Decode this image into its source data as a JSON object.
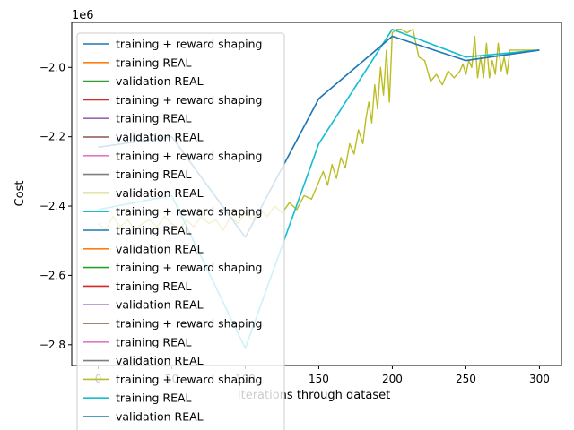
{
  "chart_data": {
    "type": "line",
    "title": "",
    "xlabel": "Iterations through dataset",
    "ylabel": "Cost",
    "offset_label": "1e6",
    "xlim": [
      -18,
      315
    ],
    "ylim": [
      -2.86,
      -1.87
    ],
    "xticks": [
      0,
      50,
      100,
      150,
      200,
      250,
      300
    ],
    "xtick_labels": [
      "0",
      "50",
      "100",
      "150",
      "200",
      "250",
      "300"
    ],
    "yticks": [
      -2.8,
      -2.6,
      -2.4,
      -2.2,
      -2.0
    ],
    "ytick_labels": [
      "−2.8",
      "−2.6",
      "−2.4",
      "−2.2",
      "−2.0"
    ],
    "legend": {
      "location": "upper-left",
      "entries": [
        {
          "label": "training + reward shaping",
          "color": "#1f77b4"
        },
        {
          "label": "training REAL",
          "color": "#ff7f0e"
        },
        {
          "label": "validation REAL",
          "color": "#2ca02c"
        },
        {
          "label": "training + reward shaping",
          "color": "#d62728"
        },
        {
          "label": "training REAL",
          "color": "#9467bd"
        },
        {
          "label": "validation REAL",
          "color": "#8c564b"
        },
        {
          "label": "training + reward shaping",
          "color": "#e377c2"
        },
        {
          "label": "training REAL",
          "color": "#7f7f7f"
        },
        {
          "label": "validation REAL",
          "color": "#bcbd22"
        },
        {
          "label": "training + reward shaping",
          "color": "#17becf"
        },
        {
          "label": "training REAL",
          "color": "#1f77b4"
        },
        {
          "label": "validation REAL",
          "color": "#ff7f0e"
        },
        {
          "label": "training + reward shaping",
          "color": "#2ca02c"
        },
        {
          "label": "training REAL",
          "color": "#d62728"
        },
        {
          "label": "validation REAL",
          "color": "#9467bd"
        },
        {
          "label": "training + reward shaping",
          "color": "#8c564b"
        },
        {
          "label": "training REAL",
          "color": "#e377c2"
        },
        {
          "label": "validation REAL",
          "color": "#7f7f7f"
        },
        {
          "label": "training + reward shaping",
          "color": "#bcbd22"
        },
        {
          "label": "training REAL",
          "color": "#17becf"
        },
        {
          "label": "validation REAL",
          "color": "#1f77b4"
        }
      ]
    },
    "series": [
      {
        "color": "#bcbd22",
        "kind": "noisy",
        "x": [
          0,
          5,
          10,
          15,
          20,
          25,
          30,
          35,
          40,
          45,
          50,
          55,
          60,
          65,
          70,
          75,
          80,
          85,
          90,
          95,
          100,
          105,
          110,
          115,
          120,
          125,
          130,
          135,
          140,
          145,
          150,
          153,
          156,
          159,
          162,
          165,
          168,
          171,
          174,
          177,
          180,
          182,
          184,
          186,
          188,
          190,
          192,
          194,
          196,
          198,
          200,
          203,
          206,
          210,
          214,
          218,
          222,
          226,
          230,
          234,
          238,
          242,
          246,
          248,
          250,
          252,
          254,
          256,
          258,
          260,
          262,
          264,
          266,
          268,
          270,
          272,
          274,
          276,
          278,
          280,
          285,
          290,
          295,
          300
        ],
        "y": [
          -2.45,
          -2.47,
          -2.43,
          -2.46,
          -2.44,
          -2.47,
          -2.45,
          -2.44,
          -2.46,
          -2.43,
          -2.45,
          -2.47,
          -2.44,
          -2.46,
          -2.43,
          -2.45,
          -2.44,
          -2.47,
          -2.43,
          -2.45,
          -2.42,
          -2.44,
          -2.41,
          -2.43,
          -2.4,
          -2.42,
          -2.39,
          -2.41,
          -2.37,
          -2.38,
          -2.33,
          -2.3,
          -2.34,
          -2.28,
          -2.32,
          -2.26,
          -2.29,
          -2.22,
          -2.25,
          -2.18,
          -2.22,
          -2.15,
          -2.1,
          -2.16,
          -2.05,
          -2.12,
          -2.0,
          -2.08,
          -1.95,
          -2.1,
          -1.9,
          -1.89,
          -1.89,
          -1.9,
          -1.89,
          -1.97,
          -1.98,
          -2.04,
          -2.02,
          -2.05,
          -2.01,
          -2.03,
          -2.01,
          -1.99,
          -2.02,
          -1.98,
          -2.0,
          -1.91,
          -2.03,
          -1.97,
          -2.03,
          -1.93,
          -2.03,
          -1.98,
          -2.02,
          -1.93,
          -2.01,
          -1.97,
          -2.02,
          -1.95,
          -1.95,
          -1.95,
          -1.95,
          -1.95
        ]
      },
      {
        "color": "#17becf",
        "kind": "line",
        "opacity": 0.25,
        "x": [
          0,
          50,
          100,
          150,
          200,
          250,
          300
        ],
        "y": [
          -2.41,
          -2.37,
          -2.81,
          -2.22,
          -1.89,
          -1.97,
          -1.95
        ]
      },
      {
        "color": "#1f77b4",
        "kind": "line",
        "opacity": 0.25,
        "x": [
          0,
          50,
          100,
          150,
          200,
          250,
          300
        ],
        "y": [
          -2.23,
          -2.2,
          -2.49,
          -2.09,
          -1.91,
          -1.98,
          -1.95
        ]
      },
      {
        "color": "#17becf",
        "kind": "line",
        "x": [
          0,
          50,
          100,
          150,
          200,
          250,
          300
        ],
        "y": [
          -2.41,
          -2.37,
          -2.81,
          -2.22,
          -1.89,
          -1.97,
          -1.95
        ]
      },
      {
        "color": "#1f77b4",
        "kind": "line",
        "x": [
          0,
          50,
          100,
          150,
          200,
          250,
          300
        ],
        "y": [
          -2.23,
          -2.2,
          -2.49,
          -2.09,
          -1.91,
          -1.98,
          -1.95
        ]
      }
    ]
  }
}
